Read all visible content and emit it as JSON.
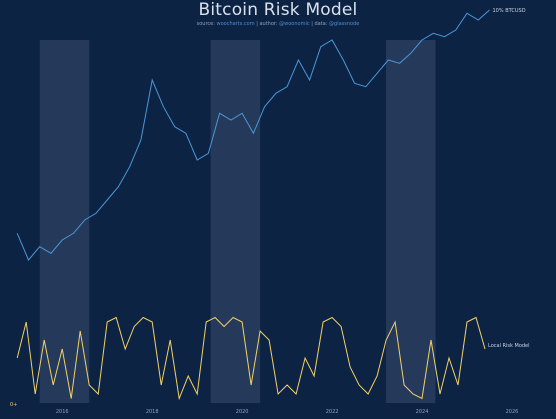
{
  "title": "Bitcoin Risk Model",
  "subtitle": {
    "source_prefix": "source:",
    "source": "woocharts.com",
    "author_prefix": "| author:",
    "author": "@woonomic",
    "data_prefix": "| data:",
    "data": "@glassnode"
  },
  "colors": {
    "background": "#0d2344",
    "price": "#4a97d8",
    "risk": "#f3d066",
    "shade": "#2a3e5e"
  },
  "chart_data": [
    {
      "type": "line",
      "series": [
        {
          "name": "10% BTCUSD",
          "x": [
            2015.0,
            2015.25,
            2015.5,
            2015.75,
            2016.0,
            2016.25,
            2016.5,
            2016.75,
            2017.0,
            2017.25,
            2017.5,
            2017.75,
            2018.0,
            2018.25,
            2018.5,
            2018.75,
            2019.0,
            2019.25,
            2019.5,
            2019.75,
            2020.0,
            2020.25,
            2020.5,
            2020.75,
            2021.0,
            2021.25,
            2021.5,
            2021.75,
            2022.0,
            2022.25,
            2022.5,
            2022.75,
            2023.0,
            2023.25,
            2023.5,
            2023.75,
            2024.0,
            2024.25,
            2024.5,
            2024.75,
            2025.0,
            2025.25,
            2025.5
          ],
          "y": [
            -4.0,
            -4.4,
            -4.2,
            -4.3,
            -4.1,
            -4.0,
            -3.8,
            -3.7,
            -3.5,
            -3.3,
            -3.0,
            -2.6,
            -1.7,
            -2.1,
            -2.4,
            -2.5,
            -2.9,
            -2.8,
            -2.2,
            -2.3,
            -2.2,
            -2.5,
            -2.1,
            -1.9,
            -1.8,
            -1.4,
            -1.7,
            -1.2,
            -1.1,
            -1.4,
            -1.75,
            -1.8,
            -1.6,
            -1.4,
            -1.45,
            -1.3,
            -1.1,
            -1.0,
            -1.05,
            -0.95,
            -0.7,
            -0.8,
            -0.65
          ]
        }
      ],
      "xlim": [
        2014.95,
        2026.0
      ],
      "shaded_periods": [
        [
          2015.5,
          2016.6
        ],
        [
          2019.3,
          2020.4
        ],
        [
          2023.2,
          2024.3
        ]
      ]
    },
    {
      "type": "line",
      "series": [
        {
          "name": "Local Risk Model",
          "x": [
            2015.0,
            2015.2,
            2015.4,
            2015.6,
            2015.8,
            2016.0,
            2016.2,
            2016.4,
            2016.6,
            2016.8,
            2017.0,
            2017.2,
            2017.4,
            2017.6,
            2017.8,
            2018.0,
            2018.2,
            2018.4,
            2018.6,
            2018.8,
            2019.0,
            2019.2,
            2019.4,
            2019.6,
            2019.8,
            2020.0,
            2020.2,
            2020.4,
            2020.6,
            2020.8,
            2021.0,
            2021.2,
            2021.4,
            2021.6,
            2021.8,
            2022.0,
            2022.2,
            2022.4,
            2022.6,
            2022.8,
            2023.0,
            2023.2,
            2023.4,
            2023.6,
            2023.8,
            2024.0,
            2024.2,
            2024.4,
            2024.6,
            2024.8,
            2025.0,
            2025.2,
            2025.4
          ],
          "y": [
            0.5,
            0.9,
            0.1,
            0.7,
            0.2,
            0.6,
            0.05,
            0.8,
            0.2,
            0.1,
            0.9,
            0.95,
            0.6,
            0.85,
            0.95,
            0.9,
            0.2,
            0.7,
            0.05,
            0.3,
            0.1,
            0.9,
            0.95,
            0.85,
            0.95,
            0.9,
            0.2,
            0.8,
            0.7,
            0.1,
            0.2,
            0.1,
            0.5,
            0.3,
            0.9,
            0.95,
            0.85,
            0.4,
            0.2,
            0.1,
            0.3,
            0.7,
            0.9,
            0.2,
            0.1,
            0.05,
            0.7,
            0.1,
            0.5,
            0.2,
            0.9,
            0.95,
            0.6
          ]
        }
      ],
      "xlim": [
        2014.95,
        2026.0
      ],
      "ylim": [
        0,
        1
      ],
      "x_ticks": [
        "2016",
        "2018",
        "2020",
        "2022",
        "2024",
        "2026"
      ],
      "y_ticks": [
        "0+"
      ]
    }
  ]
}
